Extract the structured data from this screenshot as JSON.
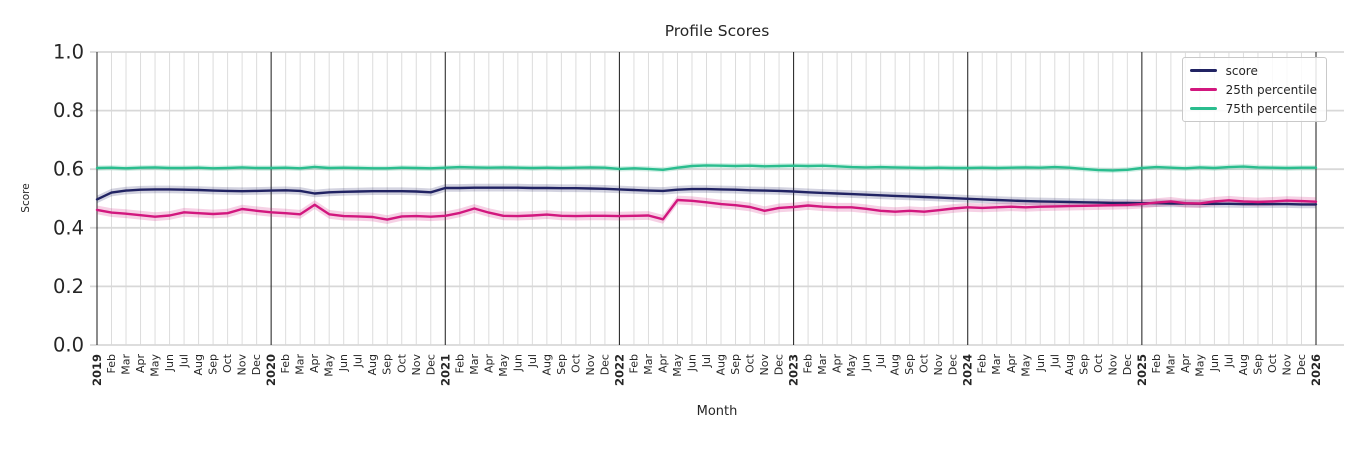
{
  "figure": {
    "title": "Profile Scores",
    "xlabel": "Month",
    "ylabel": "Score"
  },
  "axes": {
    "ytick_labels": [
      "0.0",
      "0.2",
      "0.4",
      "0.6",
      "0.8",
      "1.0"
    ],
    "yticks": [
      0.0,
      0.2,
      0.4,
      0.6,
      0.8,
      1.0
    ],
    "years": [
      "2019",
      "2020",
      "2021",
      "2022",
      "2023",
      "2024",
      "2025",
      "2026"
    ],
    "month_labels": [
      "Feb",
      "Mar",
      "Apr",
      "May",
      "Jun",
      "Jul",
      "Aug",
      "Sep",
      "Oct",
      "Nov",
      "Dec"
    ]
  },
  "colors": {
    "grid_light": "#dcdcdc",
    "grid_y": "#d8d8d8",
    "year_line": "#2e2e2e",
    "text": "#262626",
    "background": "#ffffff"
  },
  "chart_data": {
    "type": "line",
    "title": "Profile Scores",
    "xlabel": "Month",
    "ylabel": "Score",
    "ylim": [
      0.0,
      1.0
    ],
    "yticks": [
      0.0,
      0.2,
      0.4,
      0.6,
      0.8,
      1.0
    ],
    "x_range": "monthly from 2019-01 to 2026-01",
    "x_months": 85,
    "grid": true,
    "legend_position": "upper right",
    "series": [
      {
        "name": "score",
        "color": "#212363",
        "band_halfwidth": 0.013,
        "values": [
          0.497,
          0.52,
          0.527,
          0.53,
          0.531,
          0.531,
          0.53,
          0.529,
          0.527,
          0.526,
          0.525,
          0.526,
          0.527,
          0.528,
          0.526,
          0.517,
          0.521,
          0.523,
          0.524,
          0.525,
          0.525,
          0.525,
          0.524,
          0.521,
          0.536,
          0.536,
          0.537,
          0.537,
          0.537,
          0.537,
          0.536,
          0.536,
          0.535,
          0.535,
          0.534,
          0.533,
          0.531,
          0.529,
          0.527,
          0.526,
          0.53,
          0.532,
          0.532,
          0.531,
          0.53,
          0.528,
          0.527,
          0.526,
          0.524,
          0.521,
          0.519,
          0.517,
          0.515,
          0.513,
          0.511,
          0.509,
          0.507,
          0.505,
          0.503,
          0.501,
          0.499,
          0.497,
          0.495,
          0.493,
          0.491,
          0.49,
          0.489,
          0.488,
          0.487,
          0.486,
          0.485,
          0.485,
          0.484,
          0.484,
          0.483,
          0.483,
          0.482,
          0.482,
          0.482,
          0.481,
          0.481,
          0.481,
          0.481,
          0.48,
          0.48
        ]
      },
      {
        "name": "25th percentile",
        "color": "#d2177e",
        "band_halfwidth": 0.015,
        "values": [
          0.461,
          0.452,
          0.448,
          0.443,
          0.438,
          0.442,
          0.453,
          0.45,
          0.447,
          0.45,
          0.464,
          0.458,
          0.453,
          0.45,
          0.446,
          0.479,
          0.446,
          0.44,
          0.439,
          0.437,
          0.428,
          0.439,
          0.44,
          0.438,
          0.441,
          0.451,
          0.466,
          0.452,
          0.441,
          0.44,
          0.442,
          0.445,
          0.441,
          0.44,
          0.441,
          0.441,
          0.44,
          0.441,
          0.442,
          0.429,
          0.495,
          0.492,
          0.487,
          0.481,
          0.477,
          0.471,
          0.458,
          0.468,
          0.471,
          0.476,
          0.472,
          0.47,
          0.47,
          0.465,
          0.458,
          0.455,
          0.458,
          0.455,
          0.46,
          0.466,
          0.47,
          0.468,
          0.47,
          0.472,
          0.47,
          0.472,
          0.473,
          0.474,
          0.475,
          0.476,
          0.477,
          0.478,
          0.481,
          0.486,
          0.49,
          0.484,
          0.483,
          0.49,
          0.494,
          0.49,
          0.488,
          0.49,
          0.493,
          0.491,
          0.489
        ]
      },
      {
        "name": "75th percentile",
        "color": "#2abd8e",
        "band_halfwidth": 0.009,
        "values": [
          0.604,
          0.605,
          0.603,
          0.605,
          0.606,
          0.604,
          0.604,
          0.605,
          0.603,
          0.604,
          0.606,
          0.604,
          0.604,
          0.605,
          0.603,
          0.608,
          0.604,
          0.605,
          0.604,
          0.603,
          0.603,
          0.605,
          0.604,
          0.603,
          0.605,
          0.607,
          0.606,
          0.605,
          0.606,
          0.605,
          0.604,
          0.605,
          0.604,
          0.605,
          0.606,
          0.605,
          0.601,
          0.603,
          0.601,
          0.598,
          0.605,
          0.611,
          0.613,
          0.612,
          0.611,
          0.612,
          0.61,
          0.611,
          0.612,
          0.611,
          0.612,
          0.61,
          0.607,
          0.606,
          0.607,
          0.606,
          0.605,
          0.604,
          0.605,
          0.604,
          0.604,
          0.605,
          0.604,
          0.605,
          0.606,
          0.605,
          0.607,
          0.605,
          0.601,
          0.597,
          0.596,
          0.598,
          0.604,
          0.607,
          0.605,
          0.603,
          0.606,
          0.604,
          0.607,
          0.609,
          0.606,
          0.605,
          0.604,
          0.605,
          0.605
        ]
      }
    ]
  }
}
